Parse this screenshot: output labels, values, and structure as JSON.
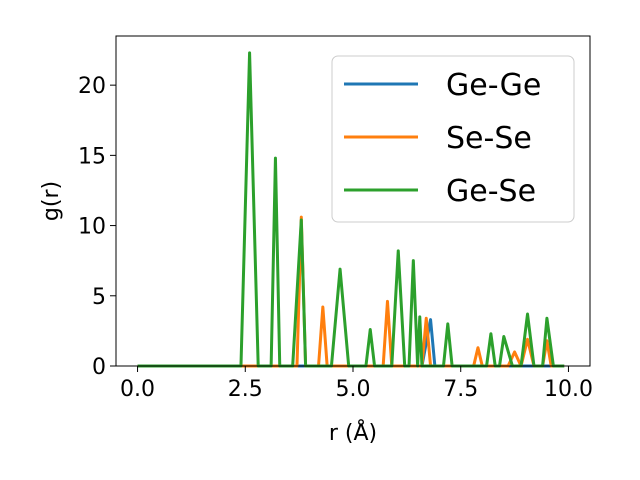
{
  "chart_data": {
    "type": "line",
    "title": "",
    "xlabel": "r (Å)",
    "ylabel": "g(r)",
    "xlim": [
      -0.5,
      10.5
    ],
    "ylim": [
      0,
      23.5
    ],
    "xticks": [
      0,
      2.5,
      5,
      7.5,
      10
    ],
    "xtick_labels": [
      "0.0",
      "2.5",
      "5.0",
      "7.5",
      "10.0"
    ],
    "yticks": [
      0,
      5,
      10,
      15,
      20
    ],
    "ytick_labels": [
      "0",
      "5",
      "10",
      "15",
      "20"
    ],
    "grid": false,
    "legend_position": "top-right",
    "series": [
      {
        "name": "Ge-Ge",
        "color": "#1f77b4",
        "points": [
          [
            0,
            0
          ],
          [
            6.6,
            0
          ],
          [
            6.8,
            3.3
          ],
          [
            6.9,
            0
          ],
          [
            9.9,
            0
          ]
        ]
      },
      {
        "name": "Se-Se",
        "color": "#ff7f0e",
        "points": [
          [
            0,
            0
          ],
          [
            3.7,
            0
          ],
          [
            3.8,
            10.6
          ],
          [
            3.9,
            0
          ],
          [
            4.2,
            0
          ],
          [
            4.3,
            4.2
          ],
          [
            4.4,
            0
          ],
          [
            5.7,
            0
          ],
          [
            5.8,
            4.6
          ],
          [
            5.9,
            0
          ],
          [
            6.6,
            0
          ],
          [
            6.7,
            3.4
          ],
          [
            6.8,
            0
          ],
          [
            7.8,
            0
          ],
          [
            7.9,
            1.3
          ],
          [
            8.0,
            0
          ],
          [
            8.6,
            0
          ],
          [
            8.75,
            1.0
          ],
          [
            8.9,
            0
          ],
          [
            9.05,
            1.9
          ],
          [
            9.2,
            0
          ],
          [
            9.4,
            0
          ],
          [
            9.5,
            1.8
          ],
          [
            9.6,
            0
          ],
          [
            9.9,
            0
          ]
        ]
      },
      {
        "name": "Ge-Se",
        "color": "#2ca02c",
        "points": [
          [
            0,
            0
          ],
          [
            2.4,
            0
          ],
          [
            2.6,
            22.3
          ],
          [
            2.8,
            0
          ],
          [
            3.1,
            0
          ],
          [
            3.2,
            14.8
          ],
          [
            3.3,
            0
          ],
          [
            3.6,
            0
          ],
          [
            3.8,
            10.4
          ],
          [
            3.9,
            0
          ],
          [
            4.5,
            0
          ],
          [
            4.7,
            6.9
          ],
          [
            4.9,
            0
          ],
          [
            5.3,
            0
          ],
          [
            5.4,
            2.6
          ],
          [
            5.5,
            0
          ],
          [
            5.9,
            0
          ],
          [
            6.05,
            8.2
          ],
          [
            6.2,
            0
          ],
          [
            6.3,
            0
          ],
          [
            6.4,
            7.5
          ],
          [
            6.5,
            0
          ],
          [
            6.55,
            3.5
          ],
          [
            6.6,
            0
          ],
          [
            7.1,
            0
          ],
          [
            7.2,
            3.0
          ],
          [
            7.3,
            0
          ],
          [
            8.1,
            0
          ],
          [
            8.2,
            2.3
          ],
          [
            8.3,
            0
          ],
          [
            8.4,
            0
          ],
          [
            8.5,
            2.1
          ],
          [
            8.7,
            0
          ],
          [
            8.9,
            0
          ],
          [
            9.05,
            3.7
          ],
          [
            9.2,
            0
          ],
          [
            9.4,
            0
          ],
          [
            9.5,
            3.4
          ],
          [
            9.65,
            0
          ],
          [
            9.9,
            0
          ]
        ]
      }
    ]
  }
}
